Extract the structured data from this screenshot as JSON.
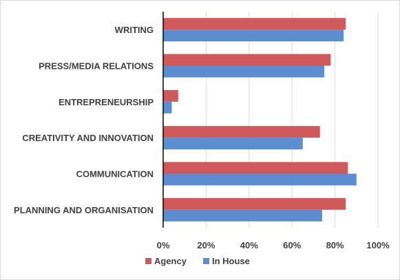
{
  "chart_data": {
    "type": "bar",
    "orientation": "horizontal",
    "categories": [
      "WRITING",
      "PRESS/MEDIA RELATIONS",
      "ENTREPRENEURSHIP",
      "CREATIVITY AND INNOVATION",
      "COMMUNICATION",
      "PLANNING AND ORGANISATION"
    ],
    "series": [
      {
        "name": "Agency",
        "color": "#d0595c",
        "values": [
          85,
          78,
          7,
          73,
          86,
          85
        ]
      },
      {
        "name": "In House",
        "color": "#5b8dd0",
        "values": [
          84,
          75,
          4,
          65,
          90,
          74
        ]
      }
    ],
    "xlim": [
      0,
      100
    ],
    "xticks": [
      "0%",
      "20%",
      "40%",
      "60%",
      "80%",
      "100%"
    ],
    "grid": "vertical",
    "legend_position": "bottom",
    "title": "",
    "xlabel": "",
    "ylabel": ""
  }
}
